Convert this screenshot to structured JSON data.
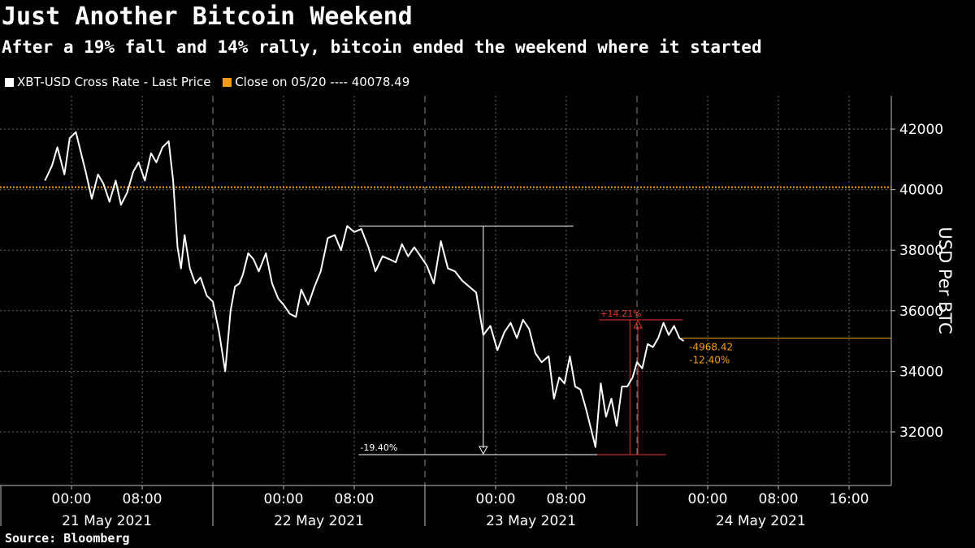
{
  "header": {
    "title": "Just Another Bitcoin Weekend",
    "subtitle": "After a 19% fall and 14% rally, bitcoin ended the weekend where it started"
  },
  "legend": {
    "series_label": "XBT-USD Cross Rate - Last Price",
    "close_label": "Close on 05/20 ---- 40078.49"
  },
  "source": "Source: Bloomberg",
  "colors": {
    "series": "#ffffff",
    "close": "#f39c12",
    "annotation_red": "#e8332b",
    "background": "#000000",
    "grid": "#6a6a6a"
  },
  "chart_data": {
    "type": "line",
    "ylabel": "USD Per BTC",
    "ylim": [
      30600,
      43000
    ],
    "y_ticks": [
      "32000",
      "34000",
      "36000",
      "38000",
      "40000",
      "42000"
    ],
    "x_ticks": [
      "00:00",
      "08:00",
      "00:00",
      "08:00",
      "00:00",
      "08:00",
      "00:00",
      "08:00",
      "16:00"
    ],
    "x_day_labels": [
      "21 May 2021",
      "22 May 2021",
      "23 May 2021",
      "24 May 2021"
    ],
    "close_value": 40078.49,
    "series": [
      {
        "name": "XBT-USD Cross Rate - Last Price",
        "x_hours_from_may21": [
          -3,
          -2.2,
          -1.6,
          -0.8,
          -0.2,
          0.5,
          1,
          1.6,
          2.3,
          3,
          3.6,
          4.3,
          5,
          5.6,
          6.3,
          7,
          7.6,
          8.3,
          9,
          9.6,
          10.3,
          11,
          11.5,
          12,
          12.4,
          12.8,
          13.4,
          14,
          14.6,
          15.3,
          16,
          16.7,
          17.4,
          18,
          18.5,
          19,
          19.4,
          20,
          20.6,
          21.2,
          22,
          22.7,
          23.4,
          24,
          24.7,
          25.4,
          26,
          26.8,
          27.5,
          28.2,
          29,
          29.8,
          30.5,
          31.2,
          32,
          32.8,
          33.6,
          34.4,
          35.2,
          36,
          36.7,
          37.4,
          38.1,
          38.8,
          39.5,
          40.2,
          41,
          41.8,
          42.6,
          43.4,
          44.2,
          45,
          45.8,
          46.6,
          47.4,
          48.2,
          49,
          49.7,
          50.4,
          51.1,
          51.8,
          52.5,
          53.2,
          54,
          54.6,
          55.2,
          55.8,
          56.4,
          57,
          57.6,
          58.2,
          58.8,
          59.3,
          59.9,
          60.5,
          61.1,
          61.7,
          62.3,
          62.9,
          63.5,
          64,
          64.6,
          65.2,
          65.8,
          66.4,
          67,
          67.6,
          68.2,
          68.8,
          69.3
        ],
        "y_usd": [
          40300,
          40800,
          41400,
          40500,
          41700,
          41900,
          41300,
          40600,
          39700,
          40500,
          40200,
          39600,
          40300,
          39500,
          39900,
          40600,
          40900,
          40300,
          41200,
          40900,
          41400,
          41600,
          40300,
          38100,
          37400,
          38500,
          37400,
          36900,
          37100,
          36500,
          36300,
          35300,
          34000,
          36000,
          36800,
          36900,
          37200,
          37900,
          37700,
          37300,
          37900,
          36900,
          36400,
          36200,
          35900,
          35800,
          36700,
          36200,
          36800,
          37300,
          38400,
          38500,
          38000,
          38800,
          38600,
          38700,
          38100,
          37300,
          37800,
          37700,
          37600,
          38200,
          37800,
          38100,
          37800,
          37500,
          36900,
          38300,
          37400,
          37300,
          37000,
          36800,
          36600,
          35200,
          35500,
          34700,
          35300,
          35600,
          35100,
          35700,
          35400,
          34600,
          34300,
          34500,
          33100,
          33800,
          33600,
          34500,
          33500,
          33400,
          32800,
          32100,
          31500,
          33600,
          32500,
          33100,
          32200,
          33500,
          33500,
          33800,
          34300,
          34100,
          34900,
          34800,
          35100,
          35600,
          35200,
          35500,
          35100,
          35000
        ]
      }
    ],
    "annotations": [
      {
        "label": "-19.40%"
      },
      {
        "label": "+14.21%"
      },
      {
        "label": "-4968.42"
      },
      {
        "label": "-12.40%"
      }
    ]
  }
}
